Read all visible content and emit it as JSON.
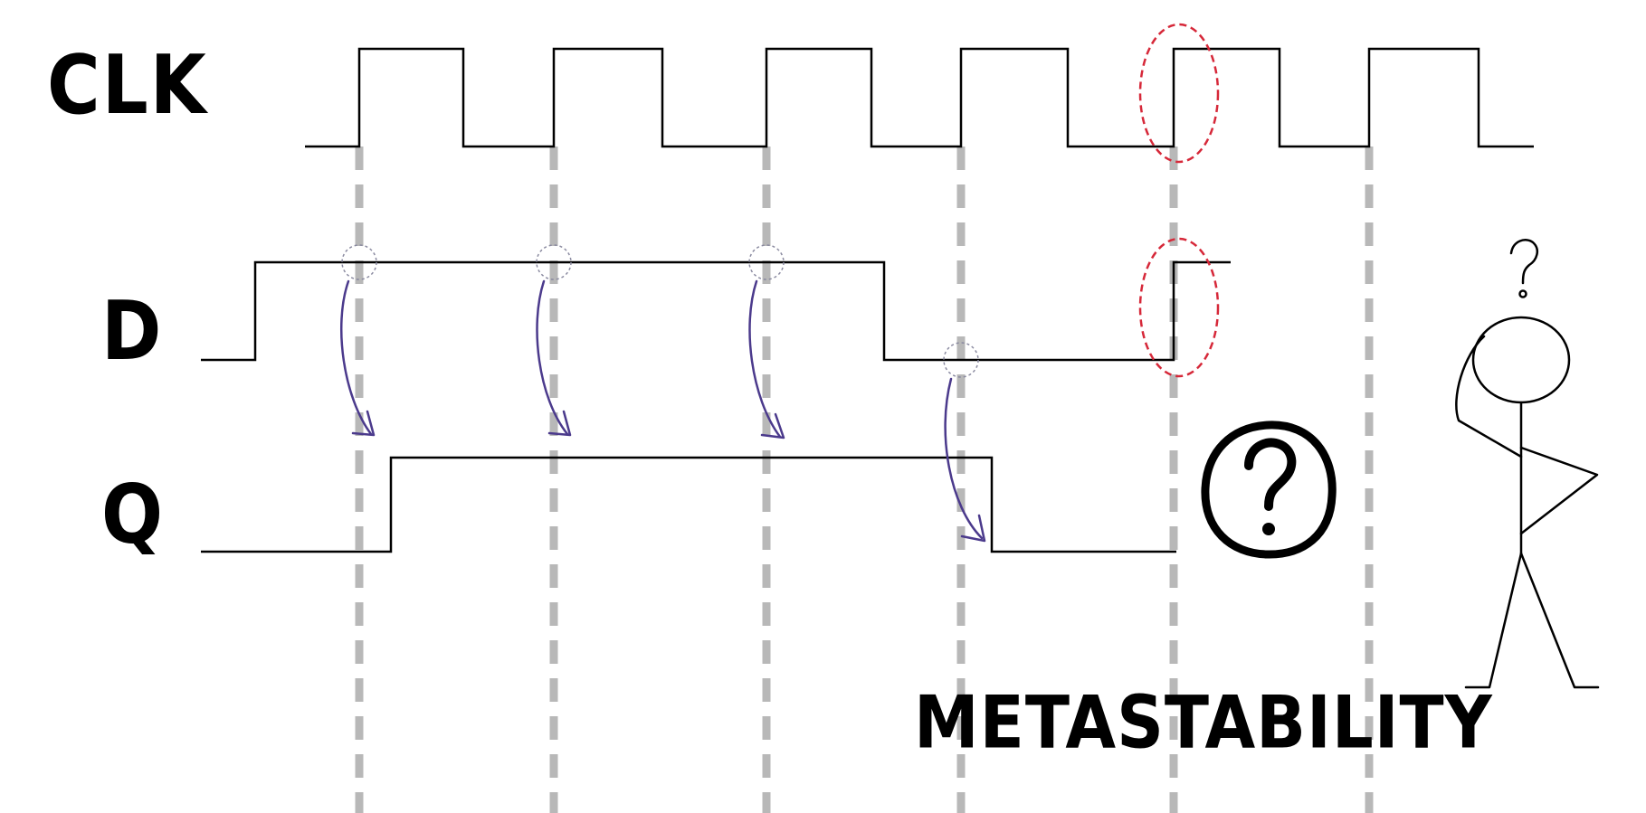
{
  "signals": {
    "clk": "CLK",
    "d": "D",
    "q": "Q"
  },
  "title": "METASTABILITY",
  "icons": {
    "question_badge": "?",
    "thinking_mark": "?"
  },
  "colors": {
    "trace": "#000000",
    "gridline": "#b8b8b8",
    "arrow": "#4b3a8c",
    "highlight": "#d62839",
    "sample_circle": "#8a8aa0"
  }
}
